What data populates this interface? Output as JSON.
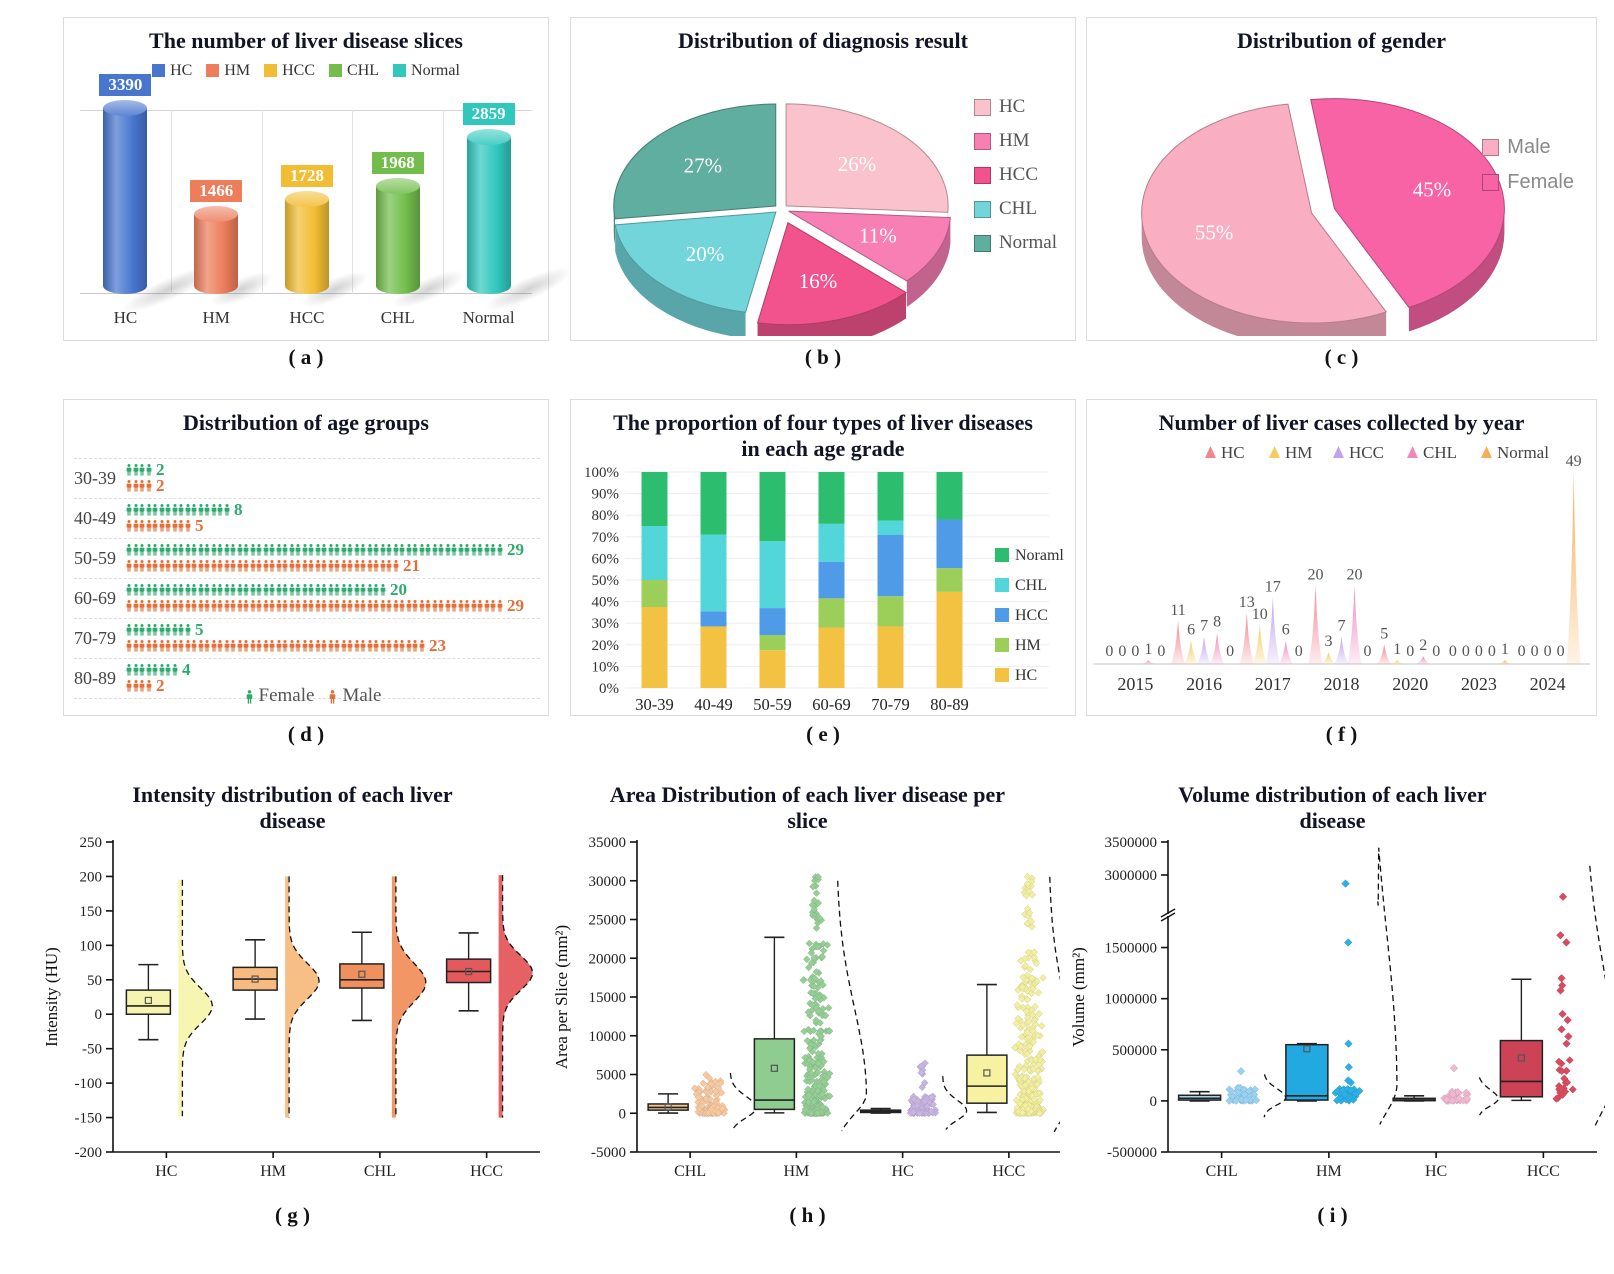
{
  "figure": {
    "background": "#ffffff"
  },
  "chart_data": [
    {
      "id": "a",
      "caption": "( a )",
      "type": "bar",
      "title": "The number of liver disease slices",
      "categories": [
        "HC",
        "HM",
        "HCC",
        "CHL",
        "Normal"
      ],
      "values": [
        3390,
        1466,
        1728,
        1968,
        2859
      ],
      "colors": [
        "#4876CF",
        "#ED7D5B",
        "#F2BD33",
        "#72BD4B",
        "#30C7BD"
      ],
      "ylim": [
        0,
        3390
      ],
      "legend": [
        "HC",
        "HM",
        "HCC",
        "CHL",
        "Normal"
      ]
    },
    {
      "id": "b",
      "caption": "( b )",
      "type": "pie",
      "title": "Distribution of diagnosis result",
      "slices": [
        {
          "label": "HC",
          "value": 26,
          "color": "#F9C2CC",
          "explode": 5,
          "pct_label": "26%"
        },
        {
          "label": "HM",
          "value": 11,
          "color": "#F87FB4",
          "explode": 6,
          "pct_label": "11%"
        },
        {
          "label": "HCC",
          "value": 16,
          "color": "#F2538C",
          "explode": 16,
          "pct_label": "16%"
        },
        {
          "label": "CHL",
          "value": 20,
          "color": "#72D5DA",
          "explode": 5,
          "pct_label": "20%"
        },
        {
          "label": "Normal",
          "value": 27,
          "color": "#5FAE9F",
          "explode": 5,
          "pct_label": "27%"
        }
      ],
      "start_from_top_deg": 0,
      "label_color": "#ffffff"
    },
    {
      "id": "c",
      "caption": "( c )",
      "type": "pie",
      "title": "Distribution of gender",
      "slices": [
        {
          "label": "Female",
          "value": 45,
          "color": "#F763A5",
          "explode": 13,
          "pct_label": "45%"
        },
        {
          "label": "Male",
          "value": 55,
          "color": "#F9AEC2",
          "explode": 4,
          "pct_label": "55%"
        }
      ],
      "legend_order": [
        1,
        0
      ],
      "start_from_top_deg": -8,
      "label_color": "#ffffff"
    },
    {
      "id": "d",
      "caption": "( d )",
      "type": "pictogram",
      "title": "Distribution of age groups",
      "groups": [
        "30-39",
        "40-49",
        "50-59",
        "60-69",
        "70-79",
        "80-89"
      ],
      "female": [
        2,
        8,
        29,
        20,
        5,
        4
      ],
      "male": [
        2,
        5,
        21,
        29,
        23,
        2
      ],
      "female_color": "#2FA96E",
      "male_color": "#E2703A",
      "icons_per_unit": 2,
      "legend": [
        "Female",
        "Male"
      ]
    },
    {
      "id": "e",
      "caption": "( e )",
      "type": "stacked-bar",
      "title": "The proportion of four types of liver diseases in each age grade",
      "categories": [
        "30-39",
        "40-49",
        "50-59",
        "60-69",
        "70-79",
        "80-89"
      ],
      "series": [
        {
          "name": "HC",
          "color": "#F4C242",
          "values": [
            37.5,
            28.5,
            17.5,
            28,
            28.5,
            44.5
          ]
        },
        {
          "name": "HM",
          "color": "#9CCE5A",
          "values": [
            12.5,
            0,
            7,
            13.5,
            14,
            11
          ]
        },
        {
          "name": "HCC",
          "color": "#4F9BE8",
          "values": [
            0,
            7,
            12.5,
            17,
            28.5,
            22.5
          ]
        },
        {
          "name": "CHL",
          "color": "#53D6DA",
          "values": [
            25,
            35.5,
            31,
            17.5,
            6.5,
            0
          ]
        },
        {
          "name": "Noraml",
          "color": "#2CBE6E",
          "values": [
            25,
            29,
            32,
            24,
            22.5,
            22
          ]
        }
      ],
      "yticks": [
        "0%",
        "10%",
        "20%",
        "30%",
        "40%",
        "50%",
        "60%",
        "70%",
        "80%",
        "90%",
        "100%"
      ],
      "legend_top_down": [
        "Noraml",
        "CHL",
        "HCC",
        "HM",
        "HC"
      ]
    },
    {
      "id": "f",
      "caption": "( f )",
      "type": "peaks",
      "title": "Number of liver cases collected by year",
      "years": [
        "2015",
        "2016",
        "2017",
        "2018",
        "2020",
        "2023",
        "2024"
      ],
      "series": [
        "HC",
        "HM",
        "HCC",
        "CHL",
        "Normal"
      ],
      "colors": [
        "#F2868E",
        "#F7CB5E",
        "#BFA3EE",
        "#F287BE",
        "#F7AE56"
      ],
      "values": [
        [
          0,
          0,
          0,
          1,
          0
        ],
        [
          11,
          6,
          7,
          8,
          0
        ],
        [
          13,
          10,
          17,
          6,
          0
        ],
        [
          20,
          3,
          7,
          20,
          0
        ],
        [
          5,
          1,
          0,
          2,
          0
        ],
        [
          0,
          0,
          0,
          0,
          1
        ],
        [
          0,
          0,
          0,
          0,
          49
        ]
      ],
      "ymax": 49
    },
    {
      "id": "g",
      "caption": "( g )",
      "type": "raincloud",
      "title": "Intensity distribution of each liver disease",
      "ylabel": "Intensity (HU)",
      "ylim": [
        -200,
        250
      ],
      "ystep": 50,
      "categories": [
        "HC",
        "HM",
        "CHL",
        "HCC"
      ],
      "colors": [
        "#F6F4AE",
        "#F7BB80",
        "#F0905C",
        "#E4595B"
      ],
      "box": [
        {
          "q1": 0,
          "q3": 35,
          "med": 12,
          "mean": 20,
          "lo": -37,
          "hi": 72
        },
        {
          "q1": 35,
          "q3": 68,
          "med": 51,
          "mean": 51,
          "lo": -7,
          "hi": 108
        },
        {
          "q1": 38,
          "q3": 73,
          "med": 50,
          "mean": 58,
          "lo": -9,
          "hi": 119
        },
        {
          "q1": 46,
          "q3": 80,
          "med": 62,
          "mean": 62,
          "lo": 5,
          "hi": 118
        }
      ],
      "violin": [
        {
          "min": -148,
          "max": 195,
          "mu": 12,
          "sd": 26
        },
        {
          "min": -150,
          "max": 200,
          "mu": 48,
          "sd": 26
        },
        {
          "min": -150,
          "max": 200,
          "mu": 46,
          "sd": 28
        },
        {
          "min": -150,
          "max": 202,
          "mu": 60,
          "sd": 25
        }
      ]
    },
    {
      "id": "h",
      "caption": "( h )",
      "type": "box-scatter",
      "title": "Area Distribution of each liver disease per slice",
      "ylabel": "Area per Slice (mm²)",
      "ylim": [
        -5000,
        35000
      ],
      "ystep": 5000,
      "categories": [
        "CHL",
        "HM",
        "HC",
        "HCC"
      ],
      "box_colors": [
        "#F6C193",
        "#8FCC8F",
        "#2b2b2b",
        "#F6F2A2"
      ],
      "point_colors": [
        "#F7C9A1",
        "#96CF96",
        "#C9B5E3",
        "#F3EFA0"
      ],
      "box": [
        {
          "q1": 400,
          "q3": 1200,
          "med": 750,
          "mean": 800,
          "lo": 30,
          "hi": 2500
        },
        {
          "q1": 500,
          "q3": 9600,
          "med": 1700,
          "mean": 5800,
          "lo": 50,
          "hi": 22700
        },
        {
          "q1": 100,
          "q3": 400,
          "med": 250,
          "mean": null,
          "lo": 30,
          "hi": 600
        },
        {
          "q1": 1300,
          "q3": 7500,
          "med": 3500,
          "mean": 5200,
          "lo": 100,
          "hi": 16600
        }
      ],
      "scatter": [
        {
          "n": 110,
          "lo": 0,
          "hi": 5000,
          "pow": 2.8,
          "spread": 16,
          "extra": []
        },
        {
          "n": 300,
          "lo": 0,
          "hi": 22000,
          "pow": 2.6,
          "spread": 14,
          "extra": [
            {
              "lo": 23000,
              "hi": 30500,
              "n": 22,
              "spread": 6
            }
          ]
        },
        {
          "n": 90,
          "lo": 0,
          "hi": 2200,
          "pow": 2.2,
          "spread": 14,
          "extra": [
            {
              "lo": 2500,
              "hi": 6600,
              "n": 10,
              "spread": 3
            }
          ]
        },
        {
          "n": 280,
          "lo": 0,
          "hi": 21000,
          "pow": 2.4,
          "spread": 15,
          "extra": [
            {
              "lo": 23500,
              "hi": 26500,
              "n": 8,
              "spread": 5
            },
            {
              "lo": 28000,
              "hi": 30700,
              "n": 14,
              "spread": 6
            }
          ]
        }
      ],
      "curve": [
        {
          "mu": 700,
          "sdUp": 1500,
          "sdDown": 1300,
          "lo": -2100,
          "hi": 5200,
          "A": 26
        },
        {
          "mu": 2500,
          "sdUp": 11000,
          "sdDown": 2600,
          "lo": -2300,
          "hi": 30000,
          "A": 30
        },
        {
          "mu": 300,
          "sdUp": 1400,
          "sdDown": 1200,
          "lo": -2100,
          "hi": 4800,
          "A": 24
        },
        {
          "mu": 2800,
          "sdUp": 10500,
          "sdDown": 2800,
          "lo": -2400,
          "hi": 30500,
          "A": 30
        }
      ]
    },
    {
      "id": "i",
      "caption": "( i )",
      "type": "box-scatter-break",
      "title": "Volume distribution of each liver disease",
      "ylabel": "Volume (mm²)",
      "ticks_low": [
        -500000,
        0,
        500000,
        1000000,
        1500000
      ],
      "ticks_high": [
        3000000,
        3500000
      ],
      "break_between": [
        1750000,
        2500000
      ],
      "categories": [
        "CHL",
        "HM",
        "HC",
        "HCC"
      ],
      "box_colors": [
        "#A6D6EE",
        "#23A9E1",
        "#F5C7DB",
        "#CC4257"
      ],
      "point_colors": [
        "#99D3F2",
        "#2BB1E8",
        "#F2B8D2",
        "#D94C60"
      ],
      "box": [
        {
          "q1": 8000,
          "q3": 55000,
          "med": 25000,
          "mean": null,
          "lo": 0,
          "hi": 90000
        },
        {
          "q1": 8000,
          "q3": 550000,
          "med": 50000,
          "mean": 510000,
          "lo": 0,
          "hi": 560000
        },
        {
          "q1": 2000,
          "q3": 25000,
          "med": 10000,
          "mean": null,
          "lo": 0,
          "hi": 50000
        },
        {
          "q1": 40000,
          "q3": 590000,
          "med": 190000,
          "mean": 420000,
          "lo": 5000,
          "hi": 1190000
        }
      ],
      "cluster": [
        {
          "n": 45,
          "lo": 0,
          "hi": 130000,
          "pow": 1.8,
          "spread": 18
        },
        {
          "n": 40,
          "lo": 0,
          "hi": 120000,
          "pow": 1.6,
          "spread": 16
        },
        {
          "n": 40,
          "lo": 0,
          "hi": 90000,
          "pow": 1.7,
          "spread": 16
        },
        {
          "n": 18,
          "lo": 20000,
          "hi": 460000,
          "pow": 1.2,
          "spread": 12
        }
      ],
      "outliers": [
        [
          290000
        ],
        [
          180000,
          200000,
          330000,
          560000,
          1550000,
          2870000
        ],
        [
          320000
        ],
        [
          60000,
          90000,
          120000,
          560000,
          630000,
          700000,
          790000,
          850000,
          1080000,
          1130000,
          1200000,
          1550000,
          1620000,
          2670000
        ]
      ],
      "curve": [
        {
          "mu": 30000,
          "sdUp": 90000,
          "sdDown": 70000,
          "lo": -160000,
          "hi": 260000,
          "A": 22
        },
        {
          "mu": 150000,
          "sdUp": 1500000,
          "sdDown": 260000,
          "lo": -230000,
          "hi": 2600000,
          "A": 26
        },
        {
          "mu": 20000,
          "sdUp": 90000,
          "sdDown": 70000,
          "lo": -140000,
          "hi": 230000,
          "A": 20
        },
        {
          "mu": 250000,
          "sdUp": 1050000,
          "sdDown": 330000,
          "lo": -240000,
          "hi": 2300000,
          "A": 30
        }
      ]
    }
  ]
}
